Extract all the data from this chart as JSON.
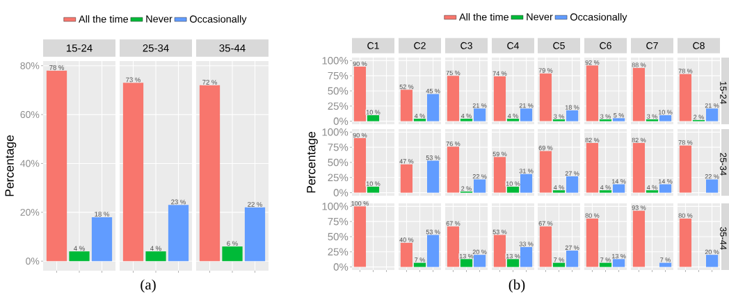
{
  "chart_data": [
    {
      "type": "bar",
      "categories": [
        "15-24",
        "25-34",
        "35-44"
      ],
      "series": [
        {
          "name": "All the time",
          "color": "#f8766d",
          "values": [
            78,
            73,
            72
          ],
          "value_labels": [
            "78 %",
            "73 %",
            "72 %"
          ]
        },
        {
          "name": "Never",
          "color": "#00ba38",
          "values": [
            4,
            4,
            6
          ],
          "value_labels": [
            "4 %",
            "4 %",
            "6 %"
          ]
        },
        {
          "name": "Occasionally",
          "color": "#619cff",
          "values": [
            18,
            23,
            22
          ],
          "value_labels": [
            "18 %",
            "23 %",
            "22 %"
          ]
        }
      ],
      "ylim": [
        -3.9,
        81.9
      ],
      "yticks": [
        {
          "value": 0,
          "label": "0%"
        },
        {
          "value": 20,
          "label": "20%"
        },
        {
          "value": 40,
          "label": "40%"
        },
        {
          "value": 60,
          "label": "60%"
        },
        {
          "value": 80,
          "label": "80%"
        }
      ],
      "grid": true,
      "legend": "top",
      "ylabel": "Percentage",
      "annotations": [
        "(a)"
      ]
    },
    {
      "type": "bar",
      "y2label": "15-24",
      "categories": [
        "C1",
        "C2",
        "C3",
        "C4",
        "C5",
        "C6",
        "C7",
        "C8"
      ],
      "series": [
        {
          "name": "All the time",
          "color": "#f8766d",
          "values": [
            90,
            52,
            75,
            74,
            79,
            92,
            88,
            78
          ],
          "value_labels": [
            "90 %",
            "52 %",
            "75 %",
            "74 %",
            "79 %",
            "92 %",
            "88 %",
            "78 %"
          ]
        },
        {
          "name": "Never",
          "color": "#00ba38",
          "values": [
            10,
            4,
            4,
            4,
            3,
            3,
            3,
            2
          ],
          "value_labels": [
            "10 %",
            "4 %",
            "4 %",
            "4 %",
            "3 %",
            "3 %",
            "3 %",
            "2 %"
          ]
        },
        {
          "name": "Occasionally",
          "color": "#619cff",
          "values": [
            null,
            45,
            21,
            21,
            18,
            5,
            10,
            21
          ],
          "value_labels": [
            null,
            "45 %",
            "21 %",
            "21 %",
            "18 %",
            "5 %",
            "10 %",
            "21 %"
          ]
        }
      ],
      "ylim": [
        -5,
        105
      ],
      "yticks": [
        {
          "value": 0,
          "label": "0%"
        },
        {
          "value": 25,
          "label": "25%"
        },
        {
          "value": 50,
          "label": "50%"
        },
        {
          "value": 75,
          "label": "75%"
        },
        {
          "value": 100,
          "label": "100%"
        }
      ],
      "grid": true,
      "legend": "top",
      "annotations": [
        "(b)"
      ]
    },
    {
      "type": "bar",
      "y2label": "25-34",
      "ylabel": "Percentage",
      "categories": [
        null,
        null,
        null,
        null,
        null,
        null,
        null,
        null
      ],
      "series": [
        {
          "color": "#f8766d",
          "values": [
            90,
            47,
            76,
            59,
            69,
            82,
            82,
            78
          ],
          "value_labels": [
            "90 %",
            "47 %",
            "76 %",
            "59 %",
            "69 %",
            "82 %",
            "82 %",
            "78 %"
          ]
        },
        {
          "color": "#00ba38",
          "values": [
            10,
            null,
            2,
            10,
            4,
            4,
            4,
            null
          ],
          "value_labels": [
            "10 %",
            null,
            "2 %",
            "10 %",
            "4 %",
            "4 %",
            "4 %",
            null
          ]
        },
        {
          "color": "#619cff",
          "values": [
            null,
            53,
            22,
            31,
            27,
            14,
            14,
            22
          ],
          "value_labels": [
            null,
            "53 %",
            "22 %",
            "31 %",
            "27 %",
            "14 %",
            "14 %",
            "22 %"
          ]
        }
      ],
      "ylim": [
        -5,
        105
      ],
      "yticks": [
        {
          "value": 0,
          "label": "0%"
        },
        {
          "value": 25,
          "label": "25%"
        },
        {
          "value": 50,
          "label": "50%"
        },
        {
          "value": 75,
          "label": "75%"
        },
        {
          "value": 100,
          "label": "100%"
        }
      ],
      "grid": true,
      "tick_labels": "y"
    },
    {
      "type": "bar",
      "y2label": "35-44",
      "categories": [
        null,
        null,
        null,
        null,
        null,
        null,
        null,
        null
      ],
      "series": [
        {
          "color": "#f8766d",
          "values": [
            100,
            40,
            67,
            53,
            67,
            80,
            93,
            80
          ],
          "value_labels": [
            "100 %",
            "40 %",
            "67 %",
            "53 %",
            "67 %",
            "80 %",
            "93 %",
            "80 %"
          ]
        },
        {
          "color": "#00ba38",
          "values": [
            null,
            7,
            13,
            13,
            7,
            7,
            null,
            null
          ],
          "value_labels": [
            null,
            "7 %",
            "13 %",
            "13 %",
            "7 %",
            "7 %",
            null,
            null
          ]
        },
        {
          "color": "#619cff",
          "values": [
            null,
            53,
            20,
            33,
            27,
            13,
            7,
            20
          ],
          "value_labels": [
            null,
            "53 %",
            "20 %",
            "33 %",
            "27 %",
            "13 %",
            "7 %",
            "20 %"
          ]
        }
      ],
      "ylim": [
        -5,
        105
      ],
      "yticks": [
        {
          "value": 0,
          "label": "0%"
        },
        {
          "value": 25,
          "label": "25%"
        },
        {
          "value": 50,
          "label": "50%"
        },
        {
          "value": 75,
          "label": "75%"
        },
        {
          "value": 100,
          "label": "100%"
        }
      ],
      "grid": true,
      "tick_labels": "y"
    }
  ]
}
